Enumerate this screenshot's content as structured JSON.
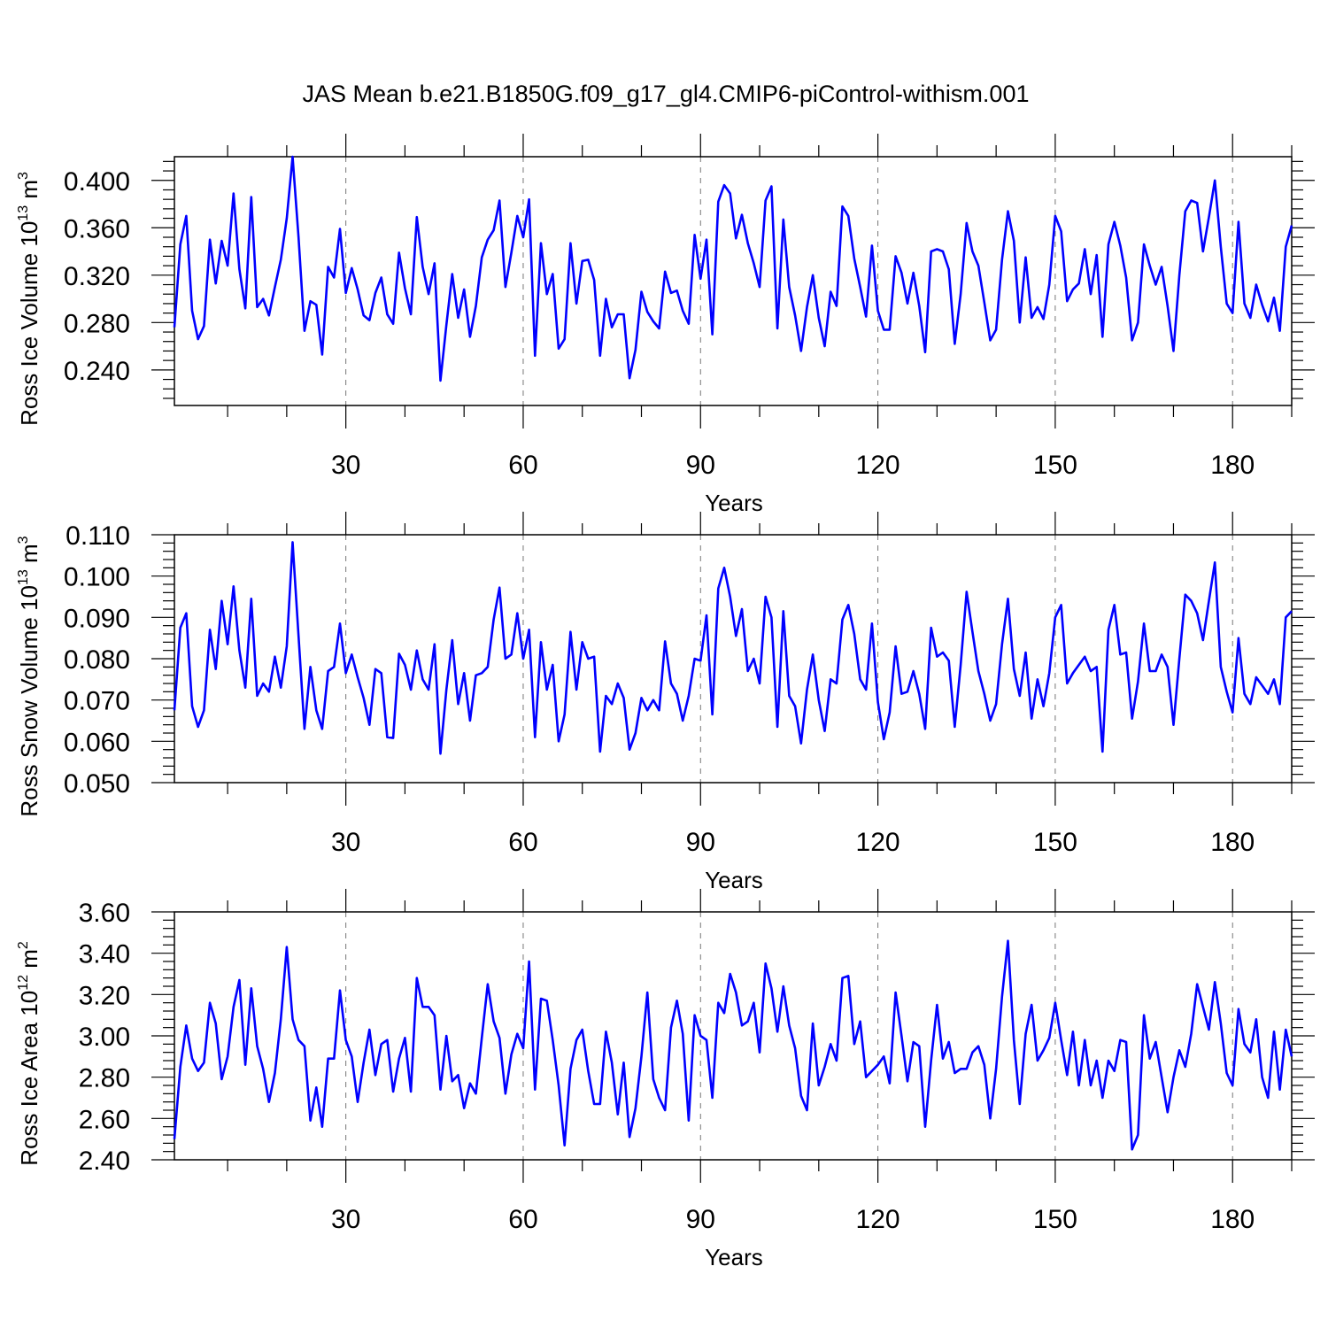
{
  "chart_data": [
    {
      "type": "line",
      "title": "JAS Mean b.e21.B1850G.f09_g17_gl4.CMIP6-piControl-withism.001",
      "xlabel": "Years",
      "ylabel": "Ross Ice Volume 10^13 m^3",
      "ylabel_parts": {
        "base": "Ross Ice Volume 10",
        "exp1": "13",
        "mid": " m",
        "exp2": "3"
      },
      "xlim": [
        1,
        190
      ],
      "ylim": [
        0.21,
        0.42
      ],
      "xticks": [
        30,
        60,
        90,
        120,
        150,
        180
      ],
      "xtick_labels": [
        "30",
        "60",
        "90",
        "120",
        "150",
        "180"
      ],
      "yticks": [
        0.24,
        0.28,
        0.32,
        0.36,
        0.4
      ],
      "ytick_labels": [
        "0.240",
        "0.280",
        "0.320",
        "0.360",
        "0.400"
      ],
      "line_color": "#0000ff",
      "series": [
        {
          "name": "Ross Ice Volume",
          "values": [
            0.276,
            0.346,
            0.37,
            0.29,
            0.266,
            0.277,
            0.35,
            0.313,
            0.349,
            0.328,
            0.389,
            0.325,
            0.292,
            0.386,
            0.293,
            0.3,
            0.286,
            0.31,
            0.333,
            0.368,
            0.42,
            0.352,
            0.273,
            0.298,
            0.295,
            0.253,
            0.327,
            0.318,
            0.359,
            0.305,
            0.326,
            0.308,
            0.286,
            0.282,
            0.305,
            0.318,
            0.287,
            0.279,
            0.339,
            0.309,
            0.287,
            0.369,
            0.327,
            0.304,
            0.33,
            0.231,
            0.278,
            0.321,
            0.284,
            0.308,
            0.268,
            0.294,
            0.335,
            0.35,
            0.358,
            0.383,
            0.31,
            0.339,
            0.37,
            0.352,
            0.384,
            0.252,
            0.347,
            0.304,
            0.321,
            0.258,
            0.266,
            0.347,
            0.296,
            0.332,
            0.333,
            0.316,
            0.252,
            0.3,
            0.276,
            0.287,
            0.287,
            0.233,
            0.257,
            0.306,
            0.289,
            0.281,
            0.275,
            0.323,
            0.305,
            0.307,
            0.29,
            0.279,
            0.354,
            0.317,
            0.35,
            0.27,
            0.382,
            0.396,
            0.389,
            0.351,
            0.371,
            0.347,
            0.33,
            0.31,
            0.383,
            0.395,
            0.275,
            0.367,
            0.31,
            0.286,
            0.256,
            0.293,
            0.32,
            0.284,
            0.26,
            0.306,
            0.294,
            0.378,
            0.37,
            0.334,
            0.31,
            0.285,
            0.345,
            0.29,
            0.274,
            0.274,
            0.336,
            0.322,
            0.296,
            0.322,
            0.294,
            0.255,
            0.34,
            0.342,
            0.34,
            0.325,
            0.262,
            0.304,
            0.364,
            0.34,
            0.328,
            0.297,
            0.265,
            0.274,
            0.333,
            0.374,
            0.349,
            0.28,
            0.335,
            0.284,
            0.293,
            0.283,
            0.312,
            0.37,
            0.357,
            0.298,
            0.308,
            0.313,
            0.342,
            0.304,
            0.337,
            0.268,
            0.346,
            0.365,
            0.345,
            0.318,
            0.265,
            0.28,
            0.346,
            0.328,
            0.312,
            0.327,
            0.294,
            0.256,
            0.32,
            0.374,
            0.383,
            0.381,
            0.34,
            0.369,
            0.4,
            0.344,
            0.296,
            0.288,
            0.365,
            0.296,
            0.284,
            0.312,
            0.295,
            0.281,
            0.301,
            0.273,
            0.344,
            0.362
          ]
        }
      ]
    },
    {
      "type": "line",
      "xlabel": "Years",
      "ylabel": "Ross Snow Volume 10^13 m^3",
      "ylabel_parts": {
        "base": "Ross Snow Volume 10",
        "exp1": "13",
        "mid": " m",
        "exp2": "3"
      },
      "xlim": [
        1,
        190
      ],
      "ylim": [
        0.05,
        0.11
      ],
      "xticks": [
        30,
        60,
        90,
        120,
        150,
        180
      ],
      "xtick_labels": [
        "30",
        "60",
        "90",
        "120",
        "150",
        "180"
      ],
      "yticks": [
        0.05,
        0.06,
        0.07,
        0.08,
        0.09,
        0.1,
        0.11
      ],
      "ytick_labels": [
        "0.050",
        "0.060",
        "0.070",
        "0.080",
        "0.090",
        "0.100",
        "0.110"
      ],
      "line_color": "#0000ff",
      "series": [
        {
          "name": "Ross Snow Volume",
          "values": [
            0.0675,
            0.0875,
            0.091,
            0.0685,
            0.0635,
            0.0675,
            0.087,
            0.0775,
            0.094,
            0.0835,
            0.0975,
            0.082,
            0.073,
            0.0945,
            0.071,
            0.074,
            0.072,
            0.0805,
            0.073,
            0.083,
            0.1082,
            0.0855,
            0.063,
            0.078,
            0.0675,
            0.063,
            0.077,
            0.078,
            0.0885,
            0.0765,
            0.081,
            0.0755,
            0.0705,
            0.064,
            0.0775,
            0.0765,
            0.061,
            0.0608,
            0.0812,
            0.0785,
            0.0725,
            0.082,
            0.075,
            0.0725,
            0.0835,
            0.057,
            0.0725,
            0.0845,
            0.069,
            0.0765,
            0.065,
            0.076,
            0.0765,
            0.078,
            0.0895,
            0.0972,
            0.08,
            0.081,
            0.091,
            0.08,
            0.087,
            0.061,
            0.084,
            0.0725,
            0.0785,
            0.06,
            0.0665,
            0.0865,
            0.0725,
            0.084,
            0.08,
            0.0805,
            0.0575,
            0.071,
            0.069,
            0.074,
            0.0705,
            0.058,
            0.062,
            0.0705,
            0.0675,
            0.07,
            0.0675,
            0.0842,
            0.074,
            0.0715,
            0.065,
            0.071,
            0.08,
            0.0795,
            0.0905,
            0.0665,
            0.097,
            0.102,
            0.095,
            0.0855,
            0.092,
            0.077,
            0.08,
            0.074,
            0.095,
            0.09,
            0.0635,
            0.0915,
            0.071,
            0.0685,
            0.0595,
            0.0725,
            0.081,
            0.07,
            0.0625,
            0.075,
            0.074,
            0.0895,
            0.093,
            0.086,
            0.075,
            0.0725,
            0.0885,
            0.0695,
            0.0605,
            0.067,
            0.083,
            0.0715,
            0.072,
            0.077,
            0.0715,
            0.063,
            0.0875,
            0.0805,
            0.0815,
            0.0795,
            0.0635,
            0.0785,
            0.0962,
            0.0865,
            0.077,
            0.0715,
            0.065,
            0.069,
            0.0835,
            0.0945,
            0.0775,
            0.071,
            0.0815,
            0.0655,
            0.075,
            0.0685,
            0.0765,
            0.09,
            0.093,
            0.074,
            0.0765,
            0.0785,
            0.0805,
            0.077,
            0.078,
            0.0575,
            0.087,
            0.093,
            0.081,
            0.0815,
            0.0655,
            0.0745,
            0.0885,
            0.077,
            0.077,
            0.081,
            0.078,
            0.064,
            0.08,
            0.0955,
            0.094,
            0.091,
            0.0845,
            0.094,
            0.1033,
            0.078,
            0.072,
            0.067,
            0.085,
            0.0715,
            0.069,
            0.0755,
            0.0735,
            0.0715,
            0.075,
            0.069,
            0.09,
            0.0915
          ]
        }
      ]
    },
    {
      "type": "line",
      "xlabel": "Years",
      "ylabel": "Ross Ice Area 10^12 m^2",
      "ylabel_parts": {
        "base": "Ross Ice Area 10",
        "exp1": "12",
        "mid": " m",
        "exp2": "2"
      },
      "xlim": [
        1,
        190
      ],
      "ylim": [
        2.4,
        3.6
      ],
      "xticks": [
        30,
        60,
        90,
        120,
        150,
        180
      ],
      "xtick_labels": [
        "30",
        "60",
        "90",
        "120",
        "150",
        "180"
      ],
      "yticks": [
        2.4,
        2.6,
        2.8,
        3.0,
        3.2,
        3.4,
        3.6
      ],
      "ytick_labels": [
        "2.40",
        "2.60",
        "2.80",
        "3.00",
        "3.20",
        "3.40",
        "3.60"
      ],
      "line_color": "#0000ff",
      "series": [
        {
          "name": "Ross Ice Area",
          "values": [
            2.5,
            2.85,
            3.05,
            2.89,
            2.83,
            2.87,
            3.16,
            3.06,
            2.79,
            2.9,
            3.14,
            3.27,
            2.86,
            3.23,
            2.95,
            2.84,
            2.68,
            2.82,
            3.08,
            3.43,
            3.08,
            2.98,
            2.95,
            2.59,
            2.75,
            2.56,
            2.89,
            2.89,
            3.22,
            2.98,
            2.9,
            2.68,
            2.87,
            3.03,
            2.81,
            2.96,
            2.98,
            2.73,
            2.89,
            2.99,
            2.73,
            3.28,
            3.14,
            3.14,
            3.1,
            2.74,
            3.0,
            2.78,
            2.81,
            2.65,
            2.77,
            2.72,
            2.99,
            3.25,
            3.07,
            2.99,
            2.72,
            2.91,
            3.01,
            2.94,
            3.36,
            2.74,
            3.18,
            3.17,
            2.98,
            2.76,
            2.47,
            2.84,
            2.98,
            3.03,
            2.83,
            2.67,
            2.67,
            3.02,
            2.87,
            2.62,
            2.87,
            2.51,
            2.65,
            2.9,
            3.21,
            2.79,
            2.7,
            2.64,
            3.04,
            3.17,
            3.01,
            2.59,
            3.1,
            3.0,
            2.98,
            2.7,
            3.16,
            3.11,
            3.3,
            3.21,
            3.05,
            3.07,
            3.16,
            2.92,
            3.35,
            3.23,
            3.02,
            3.24,
            3.05,
            2.94,
            2.71,
            2.64,
            3.06,
            2.76,
            2.85,
            2.96,
            2.88,
            3.28,
            3.29,
            2.96,
            3.07,
            2.8,
            2.83,
            2.86,
            2.9,
            2.77,
            3.21,
            3.0,
            2.78,
            2.97,
            2.95,
            2.56,
            2.88,
            3.15,
            2.89,
            2.97,
            2.82,
            2.84,
            2.84,
            2.92,
            2.95,
            2.86,
            2.6,
            2.84,
            3.19,
            3.46,
            2.98,
            2.67,
            3.01,
            3.15,
            2.88,
            2.93,
            2.99,
            3.16,
            2.98,
            2.81,
            3.02,
            2.76,
            2.98,
            2.76,
            2.88,
            2.7,
            2.88,
            2.83,
            2.98,
            2.97,
            2.45,
            2.52,
            3.1,
            2.89,
            2.97,
            2.8,
            2.63,
            2.8,
            2.93,
            2.85,
            3.01,
            3.25,
            3.14,
            3.03,
            3.26,
            3.06,
            2.82,
            2.76,
            3.13,
            2.96,
            2.92,
            3.08,
            2.8,
            2.7,
            3.02,
            2.74,
            3.03,
            2.9
          ]
        }
      ]
    }
  ]
}
